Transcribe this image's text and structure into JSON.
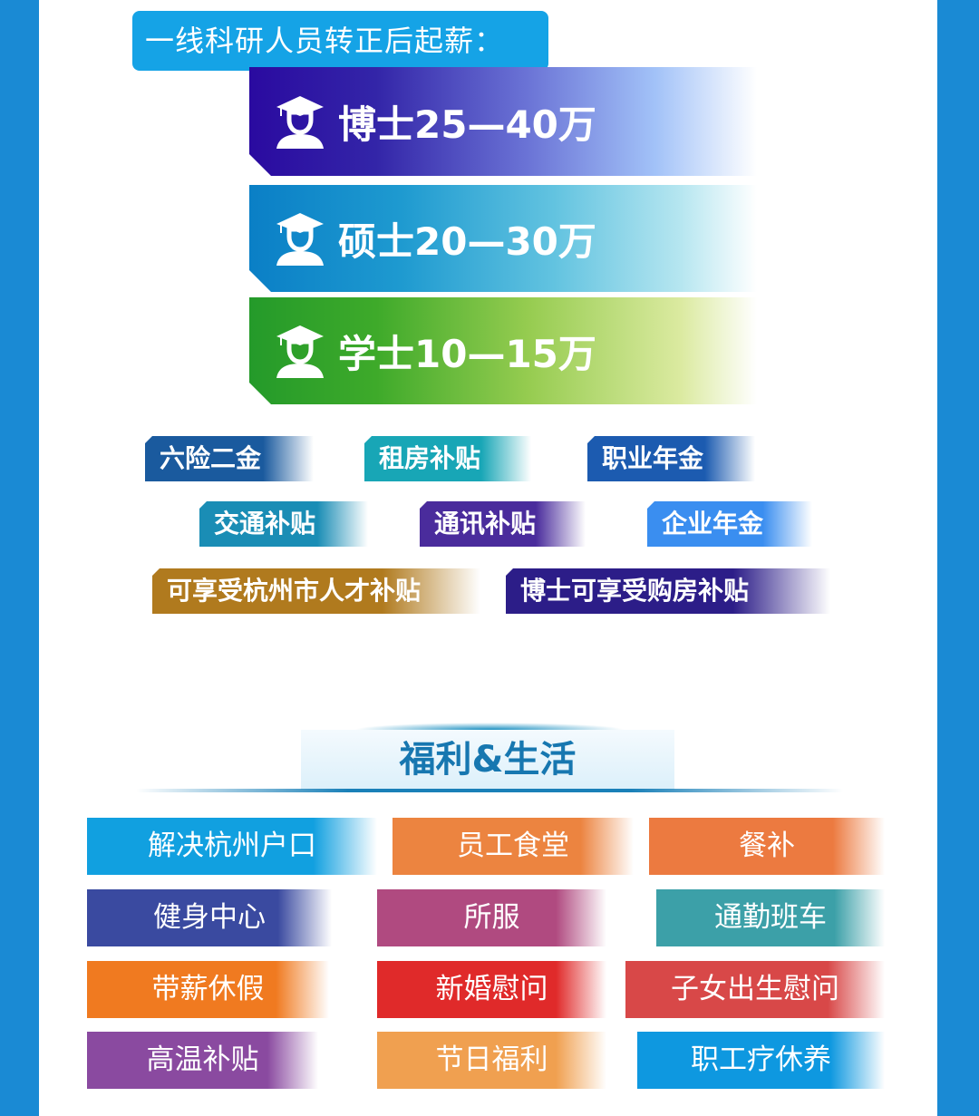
{
  "salary": {
    "title": "一线科研人员转正后起薪：",
    "levels": [
      {
        "label": "博士25—40万",
        "icon": "graduate-icon",
        "color": "#2a0aa0"
      },
      {
        "label": "硕士20—30万",
        "icon": "graduate-icon",
        "color": "#0a7fc6"
      },
      {
        "label": "学士10—15万",
        "icon": "graduate-icon",
        "color": "#249a2a"
      }
    ]
  },
  "benefits": [
    {
      "label": "六险二金",
      "color": "#1a5a9e"
    },
    {
      "label": "租房补贴",
      "color": "#18a6b6"
    },
    {
      "label": "职业年金",
      "color": "#1c5bb0"
    },
    {
      "label": "交通补贴",
      "color": "#1a8db5"
    },
    {
      "label": "通讯补贴",
      "color": "#4a2c9c"
    },
    {
      "label": "企业年金",
      "color": "#3a8ef0"
    },
    {
      "label": "可享受杭州市人才补贴",
      "color": "#b07a1e"
    },
    {
      "label": "博士可享受购房补贴",
      "color": "#2c1d88"
    }
  ],
  "welfare": {
    "title": "福利&生活",
    "items": [
      {
        "label": "解决杭州户口",
        "color": "#11a0e0"
      },
      {
        "label": "员工食堂",
        "color": "#ec8440"
      },
      {
        "label": "餐补",
        "color": "#ec7a40"
      },
      {
        "label": "健身中心",
        "color": "#3a4aa0"
      },
      {
        "label": "所服",
        "color": "#b04a80"
      },
      {
        "label": "通勤班车",
        "color": "#3ca0a8"
      },
      {
        "label": "带薪休假",
        "color": "#f07a20"
      },
      {
        "label": "新婚慰问",
        "color": "#e02a2a"
      },
      {
        "label": "子女出生慰问",
        "color": "#d84848"
      },
      {
        "label": "高温补贴",
        "color": "#8a4aa0"
      },
      {
        "label": "节日福利",
        "color": "#f0a050"
      },
      {
        "label": "职工疗休养",
        "color": "#0e98e0"
      }
    ]
  }
}
